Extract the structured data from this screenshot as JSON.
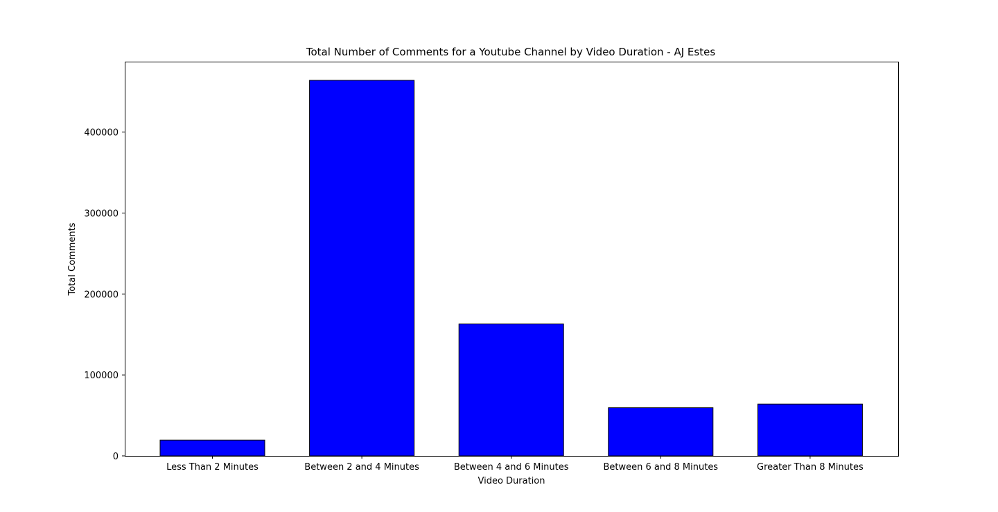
{
  "chart_data": {
    "type": "bar",
    "title": "Total Number of Comments for a Youtube Channel by Video Duration - AJ Estes",
    "xlabel": "Video Duration",
    "ylabel": "Total Comments",
    "categories": [
      "Less Than 2 Minutes",
      "Between 2 and 4 Minutes",
      "Between 4 and 6 Minutes",
      "Between 6 and 8 Minutes",
      "Greater Than 8 Minutes"
    ],
    "values": [
      19500,
      464000,
      163000,
      59500,
      64000
    ],
    "ylim": [
      0,
      487000
    ],
    "yticks": [
      0,
      100000,
      200000,
      300000,
      400000
    ],
    "ytick_labels": [
      "0",
      "100000",
      "200000",
      "300000",
      "400000"
    ],
    "grid": false,
    "colors": {
      "bar_fill": "#0000ff",
      "bar_edge": "#000000",
      "axes": "#000000"
    }
  }
}
